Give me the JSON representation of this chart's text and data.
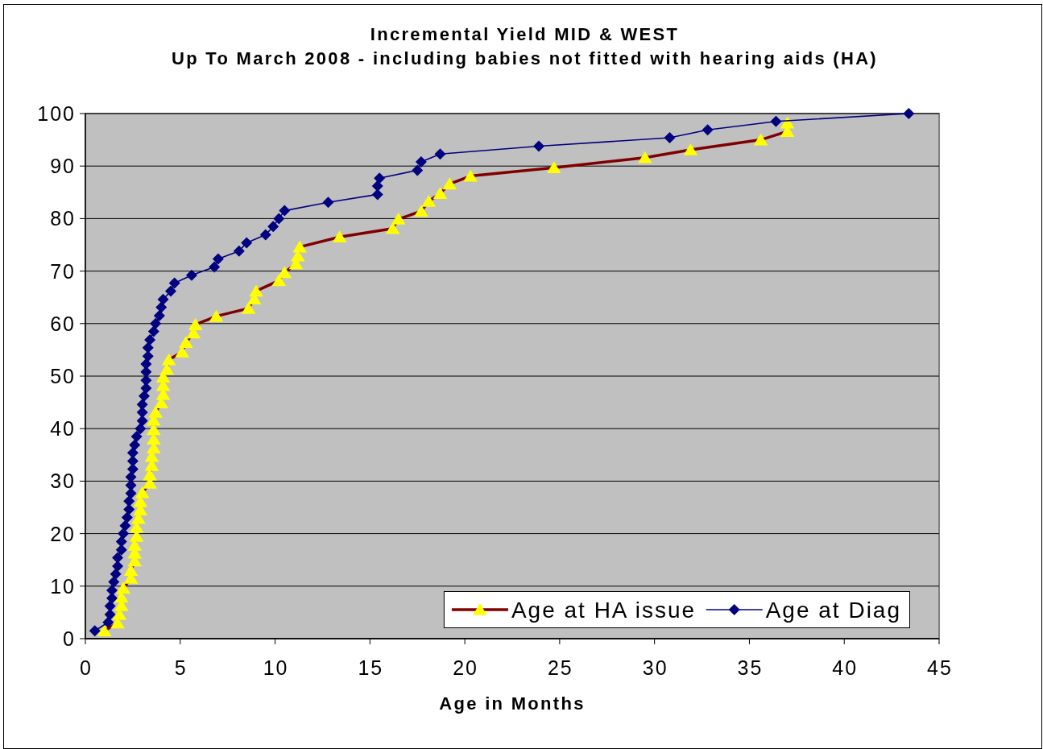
{
  "chart_data": {
    "type": "line",
    "title": "Incremental Yield MID & WEST",
    "subtitle": "Up To March 2008 - including babies not fitted with hearing aids (HA)",
    "xlabel": "Age in Months",
    "xlim": [
      0,
      45
    ],
    "xticks": [
      0,
      5,
      10,
      15,
      20,
      25,
      30,
      35,
      40,
      45
    ],
    "ylim": [
      0,
      100
    ],
    "yticks": [
      0,
      10,
      20,
      30,
      40,
      50,
      60,
      70,
      80,
      90,
      100
    ],
    "grid": "y",
    "legend": "bottom right",
    "series": [
      {
        "name": "Age at HA issue",
        "color": "#800000",
        "marker": "triangle",
        "x": [
          1.0,
          1.7,
          1.8,
          1.9,
          1.9,
          2.0,
          2.4,
          2.4,
          2.6,
          2.6,
          2.6,
          2.7,
          2.7,
          2.8,
          2.9,
          2.9,
          3.0,
          3.4,
          3.4,
          3.5,
          3.5,
          3.6,
          3.6,
          3.6,
          3.6,
          3.7,
          4.0,
          4.1,
          4.1,
          4.1,
          4.3,
          4.4,
          5.1,
          5.3,
          5.7,
          5.8,
          6.9,
          8.6,
          8.9,
          9.0,
          10.2,
          10.5,
          11.1,
          11.2,
          11.3,
          13.4,
          16.2,
          16.5,
          17.7,
          18.1,
          18.7,
          19.2,
          20.3,
          24.7,
          29.5,
          31.9,
          35.6,
          37.0,
          37.0
        ],
        "values": [
          1.5,
          3.0,
          4.6,
          6.3,
          7.9,
          9.6,
          11.5,
          13.0,
          14.8,
          16.3,
          17.8,
          19.5,
          21.2,
          22.9,
          24.5,
          26.1,
          27.8,
          29.6,
          31.2,
          33.0,
          34.7,
          36.3,
          38.0,
          39.8,
          41.6,
          43.1,
          44.9,
          46.5,
          48.2,
          49.8,
          51.3,
          53.1,
          54.6,
          56.4,
          58.2,
          59.8,
          61.4,
          62.9,
          64.7,
          66.2,
          68.2,
          69.7,
          71.4,
          72.9,
          74.6,
          76.5,
          78.1,
          79.9,
          81.4,
          83.3,
          84.8,
          86.6,
          88.1,
          89.7,
          91.6,
          93.1,
          95.0,
          96.6,
          98.2
        ],
        "colors": [
          "#ffff00",
          "#ffff00",
          "#ffff00",
          "#ffff00",
          "#ffff00",
          "#ffff00",
          "#ffff00",
          "#ffff00",
          "#ffff00",
          "#ffff00",
          "#ffff00",
          "#ffff00",
          "#ffff00",
          "#ffff00",
          "#ffff00",
          "#ffff00",
          "#ffff00",
          "#ffff00",
          "#ffff00",
          "#ffff00",
          "#ffff00",
          "#ffff00",
          "#ffff00",
          "#ffff00",
          "#ffff00",
          "#ffff00",
          "#ffff00",
          "#ffff00",
          "#ffff00",
          "#ffff00",
          "#ffff00",
          "#ffff00",
          "#ffff00",
          "#ffff00",
          "#ffff00",
          "#ffff00",
          "#ffff00",
          "#ffff00",
          "#ffff00",
          "#ffff00",
          "#ffff00",
          "#ffff00",
          "#ffff00",
          "#ffff00",
          "#ffff00",
          "#ffff00",
          "#ffff00",
          "#ffff00",
          "#ffff00",
          "#ffff00",
          "#ffff00",
          "#ffff00",
          "#ffff00",
          "#ffff00",
          "#ffff00",
          "#ffff00",
          "#ffff00",
          "#ffff00",
          "#ffff00"
        ]
      },
      {
        "name": "Age at Diag",
        "color": "#000080",
        "marker": "diamond",
        "x": [
          0.5,
          1.2,
          1.3,
          1.3,
          1.4,
          1.4,
          1.5,
          1.6,
          1.7,
          1.7,
          1.9,
          1.9,
          2.0,
          2.1,
          2.2,
          2.3,
          2.3,
          2.4,
          2.4,
          2.4,
          2.5,
          2.5,
          2.5,
          2.6,
          2.7,
          2.9,
          3.0,
          3.0,
          3.0,
          3.1,
          3.2,
          3.2,
          3.2,
          3.2,
          3.3,
          3.3,
          3.4,
          3.6,
          3.7,
          3.9,
          4.0,
          4.1,
          4.5,
          4.7,
          5.6,
          6.8,
          7.0,
          8.1,
          8.5,
          9.5,
          9.9,
          10.2,
          10.5,
          12.8,
          15.4,
          15.4,
          15.5,
          17.5,
          17.7,
          18.7,
          23.9,
          30.8,
          32.8,
          36.4,
          43.4
        ],
        "values": [
          1.5,
          3.1,
          4.6,
          6.2,
          7.7,
          9.2,
          10.8,
          12.3,
          13.8,
          15.4,
          16.9,
          18.5,
          20.0,
          21.5,
          23.1,
          24.6,
          26.2,
          27.7,
          29.2,
          30.8,
          32.3,
          33.8,
          35.4,
          36.9,
          38.5,
          40.0,
          41.5,
          43.1,
          44.6,
          46.2,
          47.7,
          49.2,
          50.8,
          52.3,
          53.8,
          55.4,
          56.9,
          58.5,
          60.0,
          61.5,
          63.1,
          64.6,
          66.2,
          67.7,
          69.2,
          70.8,
          72.3,
          73.8,
          75.4,
          76.9,
          78.5,
          80.0,
          81.5,
          83.1,
          84.6,
          86.2,
          87.7,
          89.2,
          90.8,
          92.3,
          93.8,
          95.4,
          96.9,
          98.5,
          100
        ]
      }
    ]
  }
}
